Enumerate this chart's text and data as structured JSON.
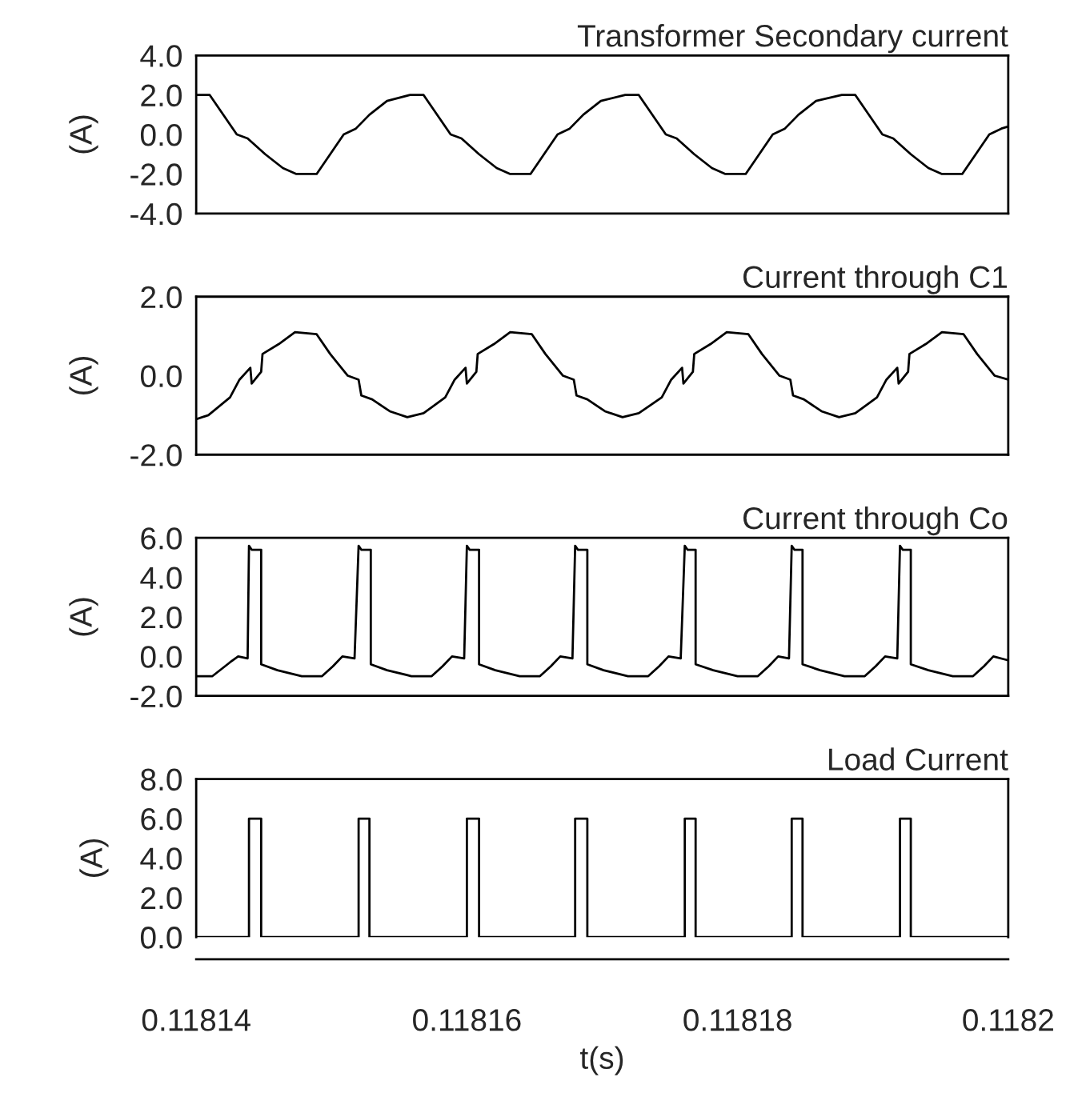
{
  "chart_data": [
    {
      "type": "line",
      "title": "Transformer Secondary current",
      "ylabel": "(A)",
      "color": "#000000",
      "xlim": [
        0.11814,
        0.1182
      ],
      "ylim": [
        -4.0,
        4.0
      ],
      "yticks": [
        {
          "value": 4,
          "label": "4.0"
        },
        {
          "value": 2,
          "label": "2.0"
        },
        {
          "value": 0,
          "label": "0.0"
        },
        {
          "value": -2,
          "label": "-2.0"
        },
        {
          "value": -4,
          "label": "-4.0"
        }
      ],
      "tick_labels": "y",
      "grid": false,
      "legend": false,
      "x": [
        0.11814,
        0.118141,
        0.118143,
        0.1181438,
        0.1181451,
        0.1181464,
        0.1181474,
        0.1181489,
        0.1181499,
        0.1181509,
        0.1181518,
        0.1181528,
        0.1181541,
        0.1181558,
        0.1181568,
        0.1181588,
        0.1181596,
        0.1181609,
        0.1181622,
        0.1181632,
        0.1181647,
        0.1181657,
        0.1181667,
        0.1181676,
        0.1181686,
        0.1181699,
        0.1181717,
        0.1181727,
        0.1181747,
        0.1181755,
        0.1181768,
        0.1181781,
        0.1181791,
        0.1181806,
        0.1181816,
        0.1181826,
        0.1181835,
        0.1181845,
        0.1181858,
        0.1181877,
        0.1181887,
        0.1181907,
        0.1181915,
        0.1181928,
        0.1181941,
        0.1181951,
        0.1181966,
        0.1181976,
        0.1181986,
        0.1181995,
        0.1182
      ],
      "values": [
        2.0,
        2.0,
        0.0,
        -0.2,
        -1.0,
        -1.7,
        -2.0,
        -2.0,
        -1.0,
        0.0,
        0.3,
        1.0,
        1.7,
        2.0,
        2.0,
        0.0,
        -0.2,
        -1.0,
        -1.7,
        -2.0,
        -2.0,
        -1.0,
        0.0,
        0.3,
        1.0,
        1.7,
        2.0,
        2.0,
        0.0,
        -0.2,
        -1.0,
        -1.7,
        -2.0,
        -2.0,
        -1.0,
        0.0,
        0.3,
        1.0,
        1.7,
        2.0,
        2.0,
        0.0,
        -0.2,
        -1.0,
        -1.7,
        -2.0,
        -2.0,
        -1.0,
        0.0,
        0.3,
        0.4
      ]
    },
    {
      "type": "line",
      "title": "Current through C1",
      "ylabel": "(A)",
      "color": "#000000",
      "xlim": [
        0.11814,
        0.1182
      ],
      "ylim": [
        -2.0,
        2.0
      ],
      "yticks": [
        {
          "value": 2,
          "label": "2.0"
        },
        {
          "value": 0,
          "label": "0.0"
        },
        {
          "value": -2,
          "label": "-2.0"
        }
      ],
      "tick_labels": "y",
      "grid": false,
      "legend": false,
      "x": [
        0.11814,
        0.1181409,
        0.1181425,
        0.1181432,
        0.118144,
        0.1181441,
        0.1181448,
        0.1181449,
        0.1181461,
        0.1181473,
        0.1181489,
        0.1181499,
        0.1181512,
        0.118152,
        0.1181522,
        0.118153,
        0.1181543,
        0.1181556,
        0.1181568,
        0.1181584,
        0.1181591,
        0.1181599,
        0.11816,
        0.1181607,
        0.1181608,
        0.118162,
        0.1181632,
        0.1181648,
        0.1181658,
        0.1181671,
        0.1181679,
        0.1181681,
        0.1181689,
        0.1181702,
        0.1181715,
        0.1181727,
        0.1181744,
        0.1181751,
        0.1181759,
        0.118176,
        0.1181767,
        0.1181768,
        0.118178,
        0.1181792,
        0.1181808,
        0.1181818,
        0.1181831,
        0.1181839,
        0.1181841,
        0.1181849,
        0.1181862,
        0.1181875,
        0.1181887,
        0.1181903,
        0.118191,
        0.1181918,
        0.1181919,
        0.1181926,
        0.1181927,
        0.1181939,
        0.1181951,
        0.1181967,
        0.1181977,
        0.118199,
        0.1182
      ],
      "values": [
        -1.1,
        -1.0,
        -0.55,
        -0.1,
        0.2,
        -0.2,
        0.1,
        0.55,
        0.8,
        1.1,
        1.05,
        0.55,
        0.0,
        -0.1,
        -0.5,
        -0.6,
        -0.9,
        -1.05,
        -0.95,
        -0.55,
        -0.1,
        0.2,
        -0.2,
        0.1,
        0.55,
        0.8,
        1.1,
        1.05,
        0.55,
        0.0,
        -0.1,
        -0.5,
        -0.6,
        -0.9,
        -1.05,
        -0.95,
        -0.55,
        -0.1,
        0.2,
        -0.2,
        0.1,
        0.55,
        0.8,
        1.1,
        1.05,
        0.55,
        0.0,
        -0.1,
        -0.5,
        -0.6,
        -0.9,
        -1.05,
        -0.95,
        -0.55,
        -0.1,
        0.2,
        -0.2,
        0.1,
        0.55,
        0.8,
        1.1,
        1.05,
        0.55,
        0.0,
        -0.1
      ]
    },
    {
      "type": "line",
      "title": "Current through Co",
      "ylabel": "(A)",
      "color": "#000000",
      "xlim": [
        0.11814,
        0.1182
      ],
      "ylim": [
        -2.0,
        6.0
      ],
      "yticks": [
        {
          "value": 6,
          "label": "6.0"
        },
        {
          "value": 4,
          "label": "4.0"
        },
        {
          "value": 2,
          "label": "2.0"
        },
        {
          "value": 0,
          "label": "0.0"
        },
        {
          "value": -2,
          "label": "-2.0"
        }
      ],
      "tick_labels": "y",
      "grid": false,
      "legend": false,
      "x": [
        0.11814,
        0.1181412,
        0.1181425,
        0.1181431,
        0.1181438,
        0.1181439,
        0.1181441,
        0.1181448,
        0.1181448,
        0.118146,
        0.1181478,
        0.1181493,
        0.1181501,
        0.1181508,
        0.1181517,
        0.118152,
        0.1181522,
        0.1181529,
        0.1181529,
        0.1181541,
        0.1181559,
        0.1181574,
        0.1181582,
        0.1181589,
        0.1181598,
        0.11816,
        0.1181602,
        0.1181609,
        0.1181609,
        0.1181621,
        0.1181639,
        0.1181654,
        0.1181662,
        0.1181669,
        0.1181678,
        0.118168,
        0.1181682,
        0.1181689,
        0.1181689,
        0.1181701,
        0.1181719,
        0.1181734,
        0.1181742,
        0.1181749,
        0.1181758,
        0.1181761,
        0.1181763,
        0.1181769,
        0.1181769,
        0.1181782,
        0.11818,
        0.1181815,
        0.1181823,
        0.118183,
        0.1181838,
        0.118184,
        0.1181842,
        0.1181848,
        0.1181848,
        0.1181861,
        0.1181879,
        0.1181894,
        0.1181902,
        0.1181909,
        0.1181918,
        0.118192,
        0.1181922,
        0.1181928,
        0.1181928,
        0.1181941,
        0.1181959,
        0.1181974,
        0.1181982,
        0.1181989,
        0.1182
      ],
      "values": [
        -1.0,
        -1.0,
        -0.3,
        0.0,
        -0.1,
        5.6,
        5.4,
        5.4,
        -0.4,
        -0.7,
        -1.0,
        -1.0,
        -0.5,
        0.0,
        -0.1,
        5.6,
        5.4,
        5.4,
        -0.4,
        -0.7,
        -1.0,
        -1.0,
        -0.5,
        0.0,
        -0.1,
        5.6,
        5.4,
        5.4,
        -0.4,
        -0.7,
        -1.0,
        -1.0,
        -0.5,
        0.0,
        -0.1,
        5.6,
        5.4,
        5.4,
        -0.4,
        -0.7,
        -1.0,
        -1.0,
        -0.5,
        0.0,
        -0.1,
        5.6,
        5.4,
        5.4,
        -0.4,
        -0.7,
        -1.0,
        -1.0,
        -0.5,
        0.0,
        -0.1,
        5.6,
        5.4,
        5.4,
        -0.4,
        -0.7,
        -1.0,
        -1.0,
        -0.5,
        0.0,
        -0.1,
        5.6,
        5.4,
        5.4,
        -0.4,
        -0.7,
        -1.0,
        -1.0,
        -0.5,
        0.0,
        -0.2
      ]
    },
    {
      "type": "line",
      "title": "Load Current",
      "ylabel": "(A)",
      "xlabel": "t(s)",
      "color": "#000000",
      "xlim": [
        0.11814,
        0.1182
      ],
      "xticks": [
        0.11814,
        0.11816,
        0.11818,
        0.1182
      ],
      "ylim": [
        0.0,
        8.0
      ],
      "yticks": [
        {
          "value": 8,
          "label": "8.0"
        },
        {
          "value": 6,
          "label": "6.0"
        },
        {
          "value": 4,
          "label": "4.0"
        },
        {
          "value": 2,
          "label": "2.0"
        },
        {
          "value": 0,
          "label": "0.0"
        }
      ],
      "grid": false,
      "legend": false,
      "x": [
        0.11814,
        0.1181439,
        0.1181439,
        0.1181448,
        0.1181448,
        0.118152,
        0.118152,
        0.1181528,
        0.1181528,
        0.11816,
        0.11816,
        0.1181609,
        0.1181609,
        0.118168,
        0.118168,
        0.1181689,
        0.1181689,
        0.1181761,
        0.1181761,
        0.1181769,
        0.1181769,
        0.118184,
        0.118184,
        0.1181848,
        0.1181848,
        0.118192,
        0.118192,
        0.1181928,
        0.1181928,
        0.1182
      ],
      "values": [
        0,
        0,
        6,
        6,
        0,
        0,
        6,
        6,
        0,
        0,
        6,
        6,
        0,
        0,
        6,
        6,
        0,
        0,
        6,
        6,
        0,
        0,
        6,
        6,
        0,
        0,
        6,
        6,
        0,
        0
      ]
    }
  ]
}
